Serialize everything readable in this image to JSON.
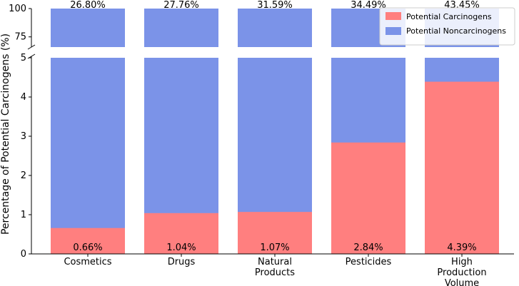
{
  "chart_data": {
    "type": "bar",
    "stacked": true,
    "broken_y_axis": true,
    "ylabel": "Percentage of Potential Carcinogens (%)",
    "categories": [
      "Cosmetics",
      "Drugs",
      "Natural Products",
      "Pesticides",
      "High Production Volume"
    ],
    "category_lines": [
      [
        "Cosmetics"
      ],
      [
        "Drugs"
      ],
      [
        "Natural",
        "Products"
      ],
      [
        "Pesticides"
      ],
      [
        "High",
        "Production",
        "Volume"
      ]
    ],
    "series": [
      {
        "name": "Potential Carcinogens",
        "color": "#ff7f7f",
        "values": [
          0.66,
          1.04,
          1.07,
          2.84,
          4.39
        ]
      },
      {
        "name": "Potential Noncarcinogens",
        "color": "#7b93e8",
        "values": [
          99.34,
          98.96,
          98.93,
          97.16,
          95.61
        ]
      }
    ],
    "bar_labels": [
      "0.66%",
      "1.04%",
      "1.07%",
      "2.84%",
      "4.39%"
    ],
    "top_labels": [
      "26.80%",
      "27.76%",
      "31.59%",
      "34.49%",
      "43.45%"
    ],
    "lower_ylim": [
      0,
      5
    ],
    "lower_yticks": [
      0,
      1,
      2,
      3,
      4,
      5
    ],
    "upper_ylim": [
      66,
      100
    ],
    "upper_yticks": [
      75,
      100
    ],
    "legend_position": "top-right",
    "grid": false
  }
}
